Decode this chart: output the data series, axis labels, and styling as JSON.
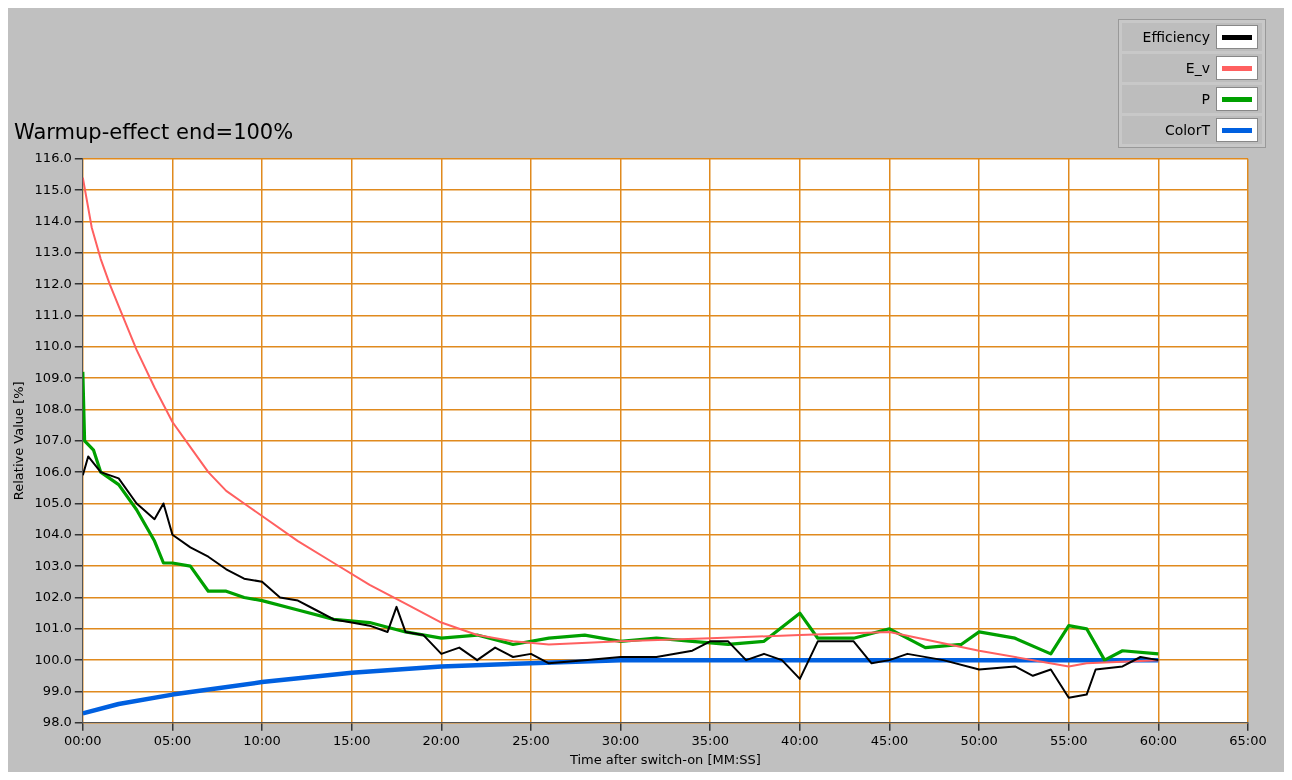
{
  "chart_data": {
    "type": "line",
    "title": "Warmup-effect end=100%",
    "xlabel": "Time after switch-on [MM:SS]",
    "ylabel": "Relative Value [%]",
    "xlim": [
      0,
      65
    ],
    "ylim": [
      98,
      116
    ],
    "xticks": [
      {
        "value": 0,
        "label": "00:00"
      },
      {
        "value": 5,
        "label": "05:00"
      },
      {
        "value": 10,
        "label": "10:00"
      },
      {
        "value": 15,
        "label": "15:00"
      },
      {
        "value": 20,
        "label": "20:00"
      },
      {
        "value": 25,
        "label": "25:00"
      },
      {
        "value": 30,
        "label": "30:00"
      },
      {
        "value": 35,
        "label": "35:00"
      },
      {
        "value": 40,
        "label": "40:00"
      },
      {
        "value": 45,
        "label": "45:00"
      },
      {
        "value": 50,
        "label": "50:00"
      },
      {
        "value": 55,
        "label": "55:00"
      },
      {
        "value": 60,
        "label": "60:00"
      },
      {
        "value": 65,
        "label": "65:00"
      }
    ],
    "yticks": [
      {
        "value": 98,
        "label": "98.0"
      },
      {
        "value": 99,
        "label": "99.0"
      },
      {
        "value": 100,
        "label": "100.0"
      },
      {
        "value": 101,
        "label": "101.0"
      },
      {
        "value": 102,
        "label": "102.0"
      },
      {
        "value": 103,
        "label": "103.0"
      },
      {
        "value": 104,
        "label": "104.0"
      },
      {
        "value": 105,
        "label": "105.0"
      },
      {
        "value": 106,
        "label": "106.0"
      },
      {
        "value": 107,
        "label": "107.0"
      },
      {
        "value": 108,
        "label": "108.0"
      },
      {
        "value": 109,
        "label": "109.0"
      },
      {
        "value": 110,
        "label": "110.0"
      },
      {
        "value": 111,
        "label": "111.0"
      },
      {
        "value": 112,
        "label": "112.0"
      },
      {
        "value": 113,
        "label": "113.0"
      },
      {
        "value": 114,
        "label": "114.0"
      },
      {
        "value": 115,
        "label": "115.0"
      },
      {
        "value": 116,
        "label": "116.0"
      }
    ],
    "grid": true,
    "legend": "top right",
    "marker": "none",
    "line_style": "solid",
    "series": [
      {
        "name": "Efficiency",
        "color": "#000000",
        "x": [
          0,
          0.3,
          1,
          2,
          3,
          4,
          4.5,
          5,
          6,
          7,
          8,
          9,
          10,
          11,
          12,
          13,
          14,
          15,
          16,
          17,
          17.5,
          18,
          19,
          20,
          21,
          22,
          23,
          24,
          25,
          26,
          28,
          30,
          32,
          34,
          35,
          36,
          37,
          38,
          39,
          40,
          41,
          43,
          44,
          45,
          46,
          48,
          50,
          52,
          53,
          54,
          55,
          56,
          56.5,
          58,
          59,
          60
        ],
        "values": [
          105.9,
          106.5,
          106.0,
          105.8,
          105.0,
          104.5,
          105.0,
          104.0,
          103.6,
          103.3,
          102.9,
          102.6,
          102.5,
          102.0,
          101.9,
          101.6,
          101.3,
          101.2,
          101.1,
          100.9,
          101.7,
          100.9,
          100.8,
          100.2,
          100.4,
          100.0,
          100.4,
          100.1,
          100.2,
          99.9,
          100.0,
          100.1,
          100.1,
          100.3,
          100.6,
          100.6,
          100.0,
          100.2,
          100.0,
          99.4,
          100.6,
          100.6,
          99.9,
          100.0,
          100.2,
          100.0,
          99.7,
          99.8,
          99.5,
          99.7,
          98.8,
          98.9,
          99.7,
          99.8,
          100.1,
          100.0
        ]
      },
      {
        "name": "E_v",
        "color": "#ff6060",
        "x": [
          0,
          0.5,
          1,
          1.5,
          2,
          3,
          4,
          5,
          6,
          7,
          8,
          9,
          10,
          12,
          14,
          16,
          18,
          20,
          22,
          24,
          26,
          30,
          35,
          40,
          45,
          50,
          55,
          56,
          60
        ],
        "values": [
          115.4,
          113.8,
          112.8,
          112.0,
          111.3,
          109.9,
          108.7,
          107.6,
          106.8,
          106.0,
          105.4,
          105.0,
          104.6,
          103.8,
          103.1,
          102.4,
          101.8,
          101.2,
          100.8,
          100.6,
          100.5,
          100.6,
          100.7,
          100.8,
          100.9,
          100.3,
          99.8,
          99.9,
          100.0
        ]
      },
      {
        "name": "P",
        "color": "#00a000",
        "x": [
          0,
          0.1,
          0.6,
          1,
          2,
          3,
          4,
          4.5,
          5,
          6,
          7,
          8,
          9,
          10,
          12,
          14,
          16,
          18,
          20,
          22,
          24,
          26,
          28,
          30,
          32,
          34,
          36,
          38,
          40,
          41,
          43,
          45,
          47,
          49,
          50,
          52,
          54,
          55,
          56,
          57,
          58,
          60
        ],
        "values": [
          109.2,
          107.0,
          106.7,
          106.0,
          105.6,
          104.8,
          103.8,
          103.1,
          103.1,
          103.0,
          102.2,
          102.2,
          102.0,
          101.9,
          101.6,
          101.3,
          101.2,
          100.9,
          100.7,
          100.8,
          100.5,
          100.7,
          100.8,
          100.6,
          100.7,
          100.6,
          100.5,
          100.6,
          101.5,
          100.7,
          100.7,
          101.0,
          100.4,
          100.5,
          100.9,
          100.7,
          100.2,
          101.1,
          101.0,
          100.0,
          100.3,
          100.2
        ]
      },
      {
        "name": "ColorT",
        "color": "#0060e0",
        "x": [
          0,
          2,
          5,
          10,
          15,
          20,
          25,
          30,
          40,
          50,
          60
        ],
        "values": [
          98.3,
          98.6,
          98.9,
          99.3,
          99.6,
          99.8,
          99.9,
          100.0,
          100.0,
          100.0,
          100.0
        ]
      }
    ]
  }
}
